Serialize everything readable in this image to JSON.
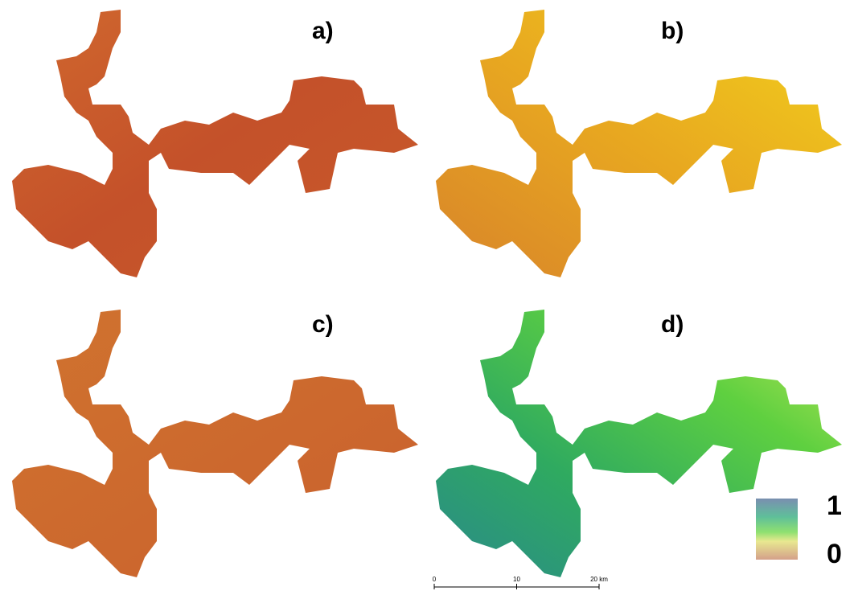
{
  "panels": [
    {
      "label": "a)"
    },
    {
      "label": "b)"
    },
    {
      "label": "c)"
    },
    {
      "label": "d)"
    }
  ],
  "legend": {
    "max": 1,
    "min": 0
  },
  "scale_bar": {
    "ticks": [
      0,
      10,
      {
        "value": 20,
        "label": "20 km"
      }
    ]
  }
}
